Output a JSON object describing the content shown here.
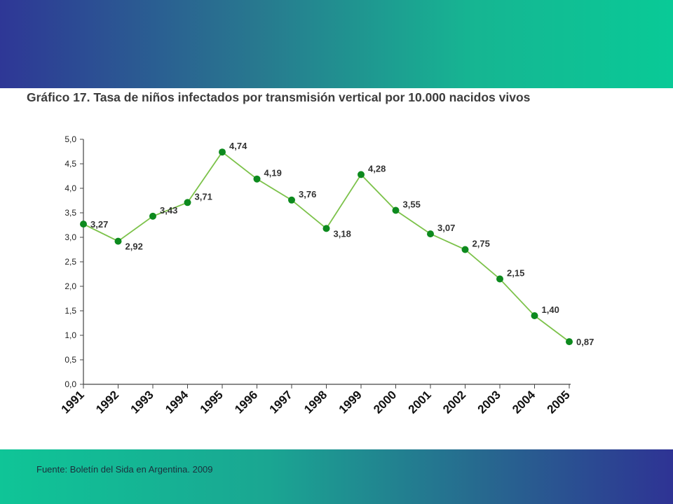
{
  "slide": {
    "top_band_color_start": "#2e3796",
    "top_band_color_end": "#09ca97",
    "source": "Fuente: Boletín del Sida en Argentina. 2009"
  },
  "chart_data": {
    "type": "line",
    "title": "Gráfico 17. Tasa de niños infectados por transmisión vertical por 10.000 nacidos vivos",
    "xlabel": "",
    "ylabel": "",
    "categories": [
      "1991",
      "1992",
      "1993",
      "1994",
      "1995",
      "1996",
      "1997",
      "1998",
      "1999",
      "2000",
      "2001",
      "2002",
      "2003",
      "2004",
      "2005"
    ],
    "values": [
      3.27,
      2.92,
      3.43,
      3.71,
      4.74,
      4.19,
      3.76,
      3.18,
      4.28,
      3.55,
      3.07,
      2.75,
      2.15,
      1.4,
      0.87
    ],
    "data_labels": [
      "3,27",
      "2,92",
      "3,43",
      "3,71",
      "4,74",
      "4,19",
      "3,76",
      "3,18",
      "4,28",
      "3,55",
      "3,07",
      "2,75",
      "2,15",
      "1,40",
      "0,87"
    ],
    "ylim": [
      0,
      5
    ],
    "yticks": [
      0,
      0.5,
      1,
      1.5,
      2,
      2.5,
      3,
      3.5,
      4,
      4.5,
      5
    ],
    "ytick_labels": [
      "0,0",
      "0,5",
      "1,0",
      "1,5",
      "2,0",
      "2,5",
      "3,0",
      "3,5",
      "4,0",
      "4,5",
      "5,0"
    ],
    "grid": false,
    "legend": "none",
    "line_color": "#7cc24a",
    "marker_color": "#0d8a1e"
  }
}
